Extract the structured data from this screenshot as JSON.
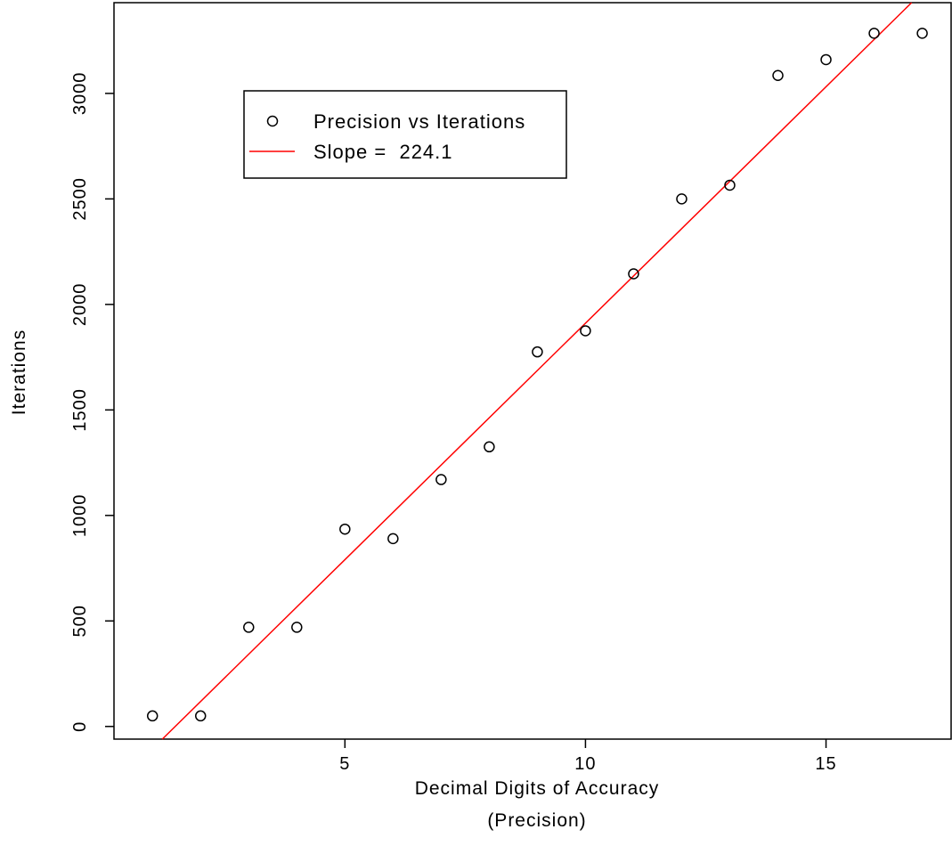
{
  "chart_data": {
    "type": "scatter",
    "x": [
      1,
      2,
      3,
      4,
      5,
      6,
      7,
      8,
      9,
      10,
      11,
      12,
      13,
      14,
      15,
      16,
      17
    ],
    "y": [
      50,
      50,
      470,
      470,
      935,
      890,
      1170,
      1325,
      1775,
      1875,
      2145,
      2500,
      2565,
      3085,
      3160,
      3285,
      3285
    ],
    "fit_line": {
      "slope": 224.1,
      "intercept": -330,
      "color": "#ff0000"
    },
    "xlim": [
      0.2,
      17.6
    ],
    "ylim": [
      -60,
      3430
    ],
    "xticks": [
      5,
      10,
      15
    ],
    "yticks": [
      0,
      500,
      1000,
      1500,
      2000,
      2500,
      3000
    ],
    "xlabel_line1": "Decimal Digits of Accuracy",
    "xlabel_line2": "(Precision)",
    "ylabel": "Iterations",
    "legend": {
      "position": "top-left",
      "entries": [
        {
          "label": "Precision vs Iterations",
          "marker": "circle"
        },
        {
          "label": "Slope =  224.1",
          "marker": "line",
          "color": "#ff0000"
        }
      ]
    },
    "grid": false
  }
}
